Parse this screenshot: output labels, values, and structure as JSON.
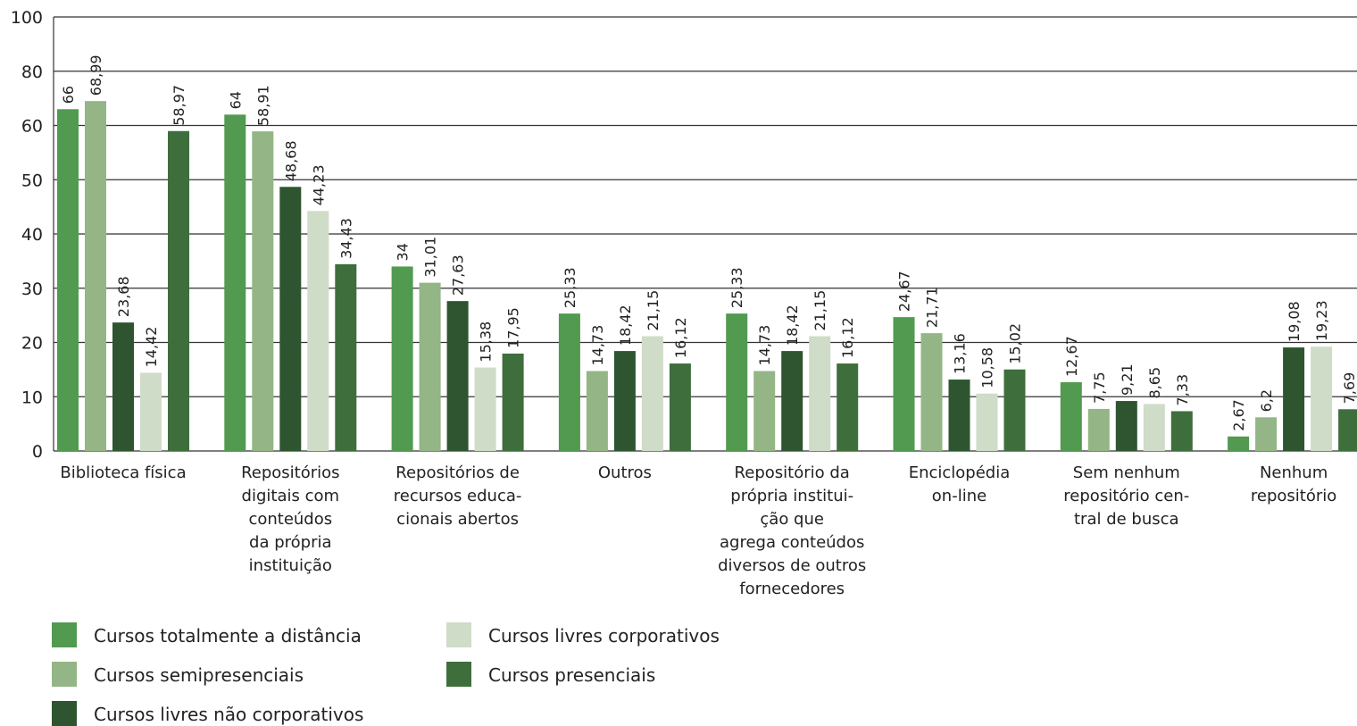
{
  "chart_data": {
    "type": "bar",
    "categories": [
      "Biblioteca física",
      "Repositórios\ndigitais com\nconteúdos\nda própria\ninstituição",
      "Repositórios de\nrecursos educa-\ncionais abertos",
      "Outros",
      "Repositório da\nprópria institui-\nção que\nagrega conteúdos\ndiversos de outros\nfornecedores",
      "Enciclopédia\non-line",
      "Sem nenhum\nrepositório cen-\ntral de busca",
      "Nenhum\nrepositório"
    ],
    "series": [
      {
        "name": "Cursos totalmente a distância",
        "color": "#519a50",
        "values": [
          66,
          64,
          34,
          25.33,
          25.33,
          24.67,
          12.67,
          2.67
        ],
        "value_labels": [
          "66",
          "64",
          "34",
          "25,33",
          "25,33",
          "24,67",
          "12,67",
          "2,67"
        ]
      },
      {
        "name": "Cursos semipresenciais",
        "color": "#94b585",
        "values": [
          68.99,
          58.91,
          31.01,
          14.73,
          14.73,
          21.71,
          7.75,
          6.2
        ],
        "value_labels": [
          "68,99",
          "58,91",
          "31,01",
          "14,73",
          "14,73",
          "21,71",
          "7,75",
          "6,2"
        ]
      },
      {
        "name": "Cursos livres não corporativos",
        "color": "#2e5530",
        "values": [
          23.68,
          48.68,
          27.63,
          18.42,
          18.42,
          13.16,
          9.21,
          19.08
        ],
        "value_labels": [
          "23,68",
          "48,68",
          "27,63",
          "18,42",
          "18,42",
          "13,16",
          "9,21",
          "19,08"
        ]
      },
      {
        "name": "Cursos livres corporativos",
        "color": "#cfdcc8",
        "values": [
          14.42,
          44.23,
          15.38,
          21.15,
          21.15,
          10.58,
          8.65,
          19.23
        ],
        "value_labels": [
          "14,42",
          "44,23",
          "15,38",
          "21,15",
          "21,15",
          "10,58",
          "8,65",
          "19,23"
        ]
      },
      {
        "name": "Cursos presenciais",
        "color": "#3e6e3c",
        "values": [
          58.97,
          34.43,
          17.95,
          16.12,
          16.12,
          15.02,
          7.33,
          7.69
        ],
        "value_labels": [
          "58,97",
          "34,43",
          "17,95",
          "16,12",
          "16,12",
          "15,02",
          "7,33",
          "7,69"
        ]
      }
    ],
    "ylim": [
      0,
      100
    ],
    "yticks": [
      0,
      10,
      20,
      30,
      40,
      50,
      60,
      80,
      100
    ],
    "grid": true
  }
}
